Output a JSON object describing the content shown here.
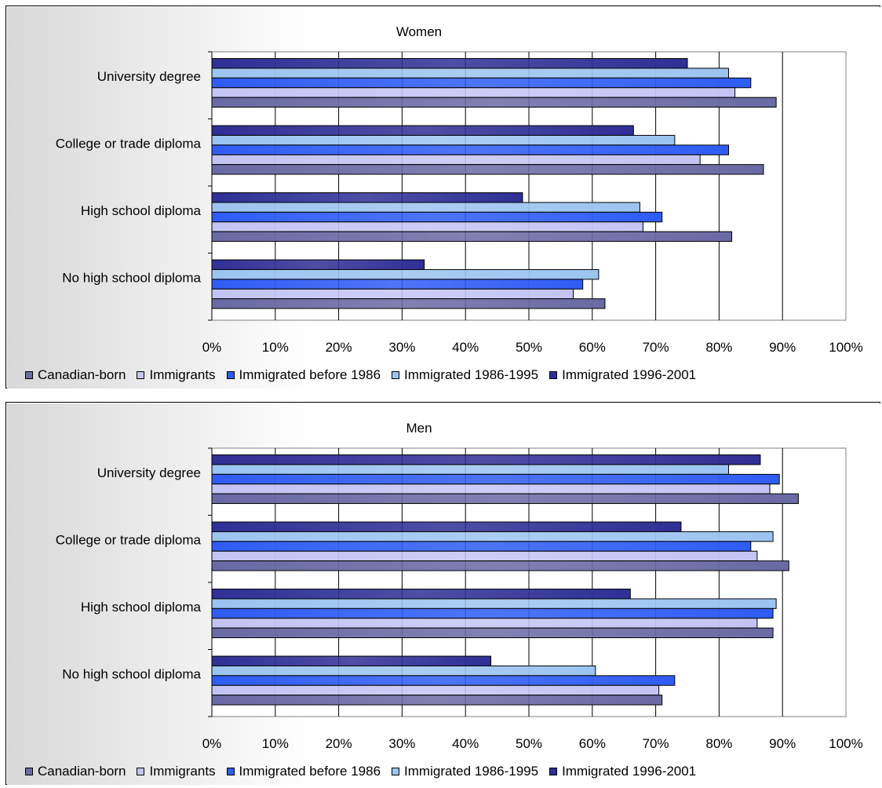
{
  "chart_data": [
    {
      "type": "bar",
      "orientation": "horizontal",
      "title": "Women",
      "categories": [
        "University degree",
        "College or trade diploma",
        "High school diploma",
        "No high school diploma"
      ],
      "series": [
        {
          "name": "Canadian-born",
          "values": [
            89,
            87,
            82,
            62
          ]
        },
        {
          "name": "Immigrants",
          "values": [
            82.5,
            77,
            68,
            57
          ]
        },
        {
          "name": "Immigrated before 1986",
          "values": [
            85,
            81.5,
            71,
            58.5
          ]
        },
        {
          "name": "Immigrated 1986-1995",
          "values": [
            81.5,
            73,
            67.5,
            61
          ]
        },
        {
          "name": "Immigrated 1996-2001",
          "values": [
            75,
            66.5,
            49,
            33.5
          ]
        }
      ],
      "xticks": [
        "0%",
        "10%",
        "20%",
        "30%",
        "40%",
        "50%",
        "60%",
        "70%",
        "80%",
        "90%",
        "100%"
      ],
      "xlim": [
        0,
        100
      ],
      "grid": true,
      "legend_position": "bottom"
    },
    {
      "type": "bar",
      "orientation": "horizontal",
      "title": "Men",
      "categories": [
        "University degree",
        "College or trade diploma",
        "High school diploma",
        "No high school diploma"
      ],
      "series": [
        {
          "name": "Canadian-born",
          "values": [
            92.5,
            91,
            88.5,
            71
          ]
        },
        {
          "name": "Immigrants",
          "values": [
            88,
            86,
            86,
            70.5
          ]
        },
        {
          "name": "Immigrated before 1986",
          "values": [
            89.5,
            85,
            88.5,
            73
          ]
        },
        {
          "name": "Immigrated 1986-1995",
          "values": [
            81.5,
            88.5,
            89,
            60.5
          ]
        },
        {
          "name": "Immigrated 1996-2001",
          "values": [
            86.5,
            74,
            66,
            44
          ]
        }
      ],
      "xticks": [
        "0%",
        "10%",
        "20%",
        "30%",
        "40%",
        "50%",
        "60%",
        "70%",
        "80%",
        "90%",
        "100%"
      ],
      "xlim": [
        0,
        100
      ],
      "grid": true,
      "legend_position": "bottom"
    }
  ],
  "colors": {
    "Canadian-born": "#6a6aa4",
    "Immigrants": "#c4c4f4",
    "Immigrated before 1986": "#2f5cf5",
    "Immigrated 1986-1995": "#9cc4f0",
    "Immigrated 1996-2001": "#2f2f96",
    "plot_bg": "#ffffff",
    "panel_bg_left": "#d8d8d8",
    "grid": "#000000"
  }
}
